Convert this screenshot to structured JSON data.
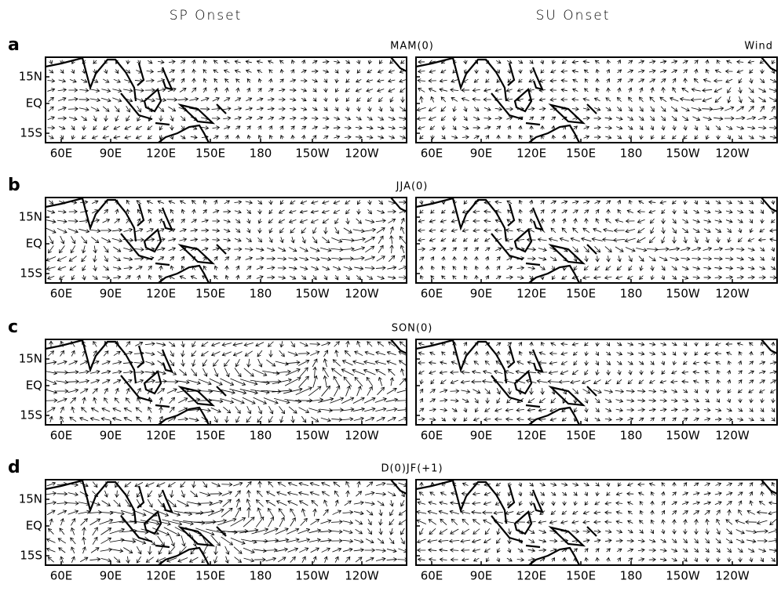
{
  "columns": [
    "SP Onset",
    "SU Onset"
  ],
  "variable": "Wind",
  "panels": [
    {
      "letter": "a",
      "season": "MAM(0)"
    },
    {
      "letter": "b",
      "season": "JJA(0)"
    },
    {
      "letter": "c",
      "season": "SON(0)"
    },
    {
      "letter": "d",
      "season": "D(0)JF(+1)"
    }
  ],
  "x_ticks": [
    "60E",
    "90E",
    "120E",
    "150E",
    "180",
    "150W",
    "120W"
  ],
  "y_ticks": [
    "15N",
    "EQ",
    "15S"
  ]
}
